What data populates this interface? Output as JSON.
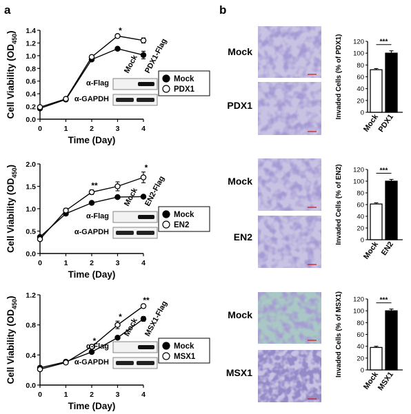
{
  "panel_letters": {
    "left": "a",
    "right": "b"
  },
  "chart_data": [
    {
      "type": "line",
      "panel": "a",
      "ylabel_main": "Cell Viability (OD",
      "ylabel_sub": "450",
      "ylabel_close": ")",
      "xlabel": "Time (Day)",
      "x": [
        0,
        1,
        2,
        3,
        4
      ],
      "ylim": [
        0.0,
        1.4
      ],
      "yticks": [
        "0.0",
        "0.2",
        "0.4",
        "0.6",
        "0.8",
        "1.0",
        "1.2",
        "1.4"
      ],
      "xticks": [
        "0",
        "1",
        "2",
        "3",
        "4"
      ],
      "series": [
        {
          "name": "Mock",
          "marker": "filled",
          "values": [
            0.17,
            0.31,
            0.94,
            1.11,
            1.01
          ],
          "err": [
            0.01,
            0.01,
            0.02,
            0.01,
            0.06
          ]
        },
        {
          "name": "PDX1",
          "marker": "open",
          "values": [
            0.19,
            0.32,
            0.98,
            1.31,
            1.24
          ],
          "err": [
            0.01,
            0.01,
            0.02,
            0.02,
            0.04
          ]
        }
      ],
      "annotations": [
        {
          "x": 3,
          "text": "*"
        }
      ],
      "legend": [
        "Mock",
        "PDX1"
      ],
      "blot": {
        "lanes": [
          "Mock",
          "PDX1-Flag"
        ],
        "rows": [
          "α-Flag",
          "α-GAPDH"
        ]
      }
    },
    {
      "type": "line",
      "panel": "a",
      "ylabel_main": "Cell Viability (OD",
      "ylabel_sub": "450",
      "ylabel_close": ")",
      "xlabel": "Time (Day)",
      "x": [
        0,
        1,
        2,
        3,
        4
      ],
      "ylim": [
        0.0,
        2.0
      ],
      "yticks": [
        "0.0",
        "0.5",
        "1.0",
        "1.5",
        "2.0"
      ],
      "xticks": [
        "0",
        "1",
        "2",
        "3",
        "4"
      ],
      "series": [
        {
          "name": "Mock",
          "marker": "filled",
          "values": [
            0.37,
            0.89,
            1.13,
            1.26,
            1.27
          ],
          "err": [
            0.02,
            0.03,
            0.02,
            0.02,
            0.02
          ]
        },
        {
          "name": "EN2",
          "marker": "open",
          "values": [
            0.32,
            0.96,
            1.37,
            1.5,
            1.7
          ],
          "err": [
            0.02,
            0.05,
            0.05,
            0.1,
            0.12
          ]
        }
      ],
      "annotations": [
        {
          "x": 2,
          "text": "**"
        },
        {
          "x": 4,
          "text": "*"
        }
      ],
      "legend": [
        "Mock",
        "EN2"
      ],
      "blot": {
        "lanes": [
          "Mock",
          "EN2-Flag"
        ],
        "rows": [
          "α-Flag",
          "α-GAPDH"
        ]
      }
    },
    {
      "type": "line",
      "panel": "a",
      "ylabel_main": "Cell Viability (OD",
      "ylabel_sub": "450",
      "ylabel_close": ")",
      "xlabel": "Time (Day)",
      "x": [
        0,
        1,
        2,
        3,
        4
      ],
      "ylim": [
        0.0,
        1.2
      ],
      "yticks": [
        "0.0",
        "0.4",
        "0.8",
        "1.2"
      ],
      "xticks": [
        "0",
        "1",
        "2",
        "3",
        "4"
      ],
      "series": [
        {
          "name": "Mock",
          "marker": "filled",
          "values": [
            0.23,
            0.31,
            0.44,
            0.63,
            0.88
          ],
          "err": [
            0.01,
            0.01,
            0.01,
            0.02,
            0.03
          ]
        },
        {
          "name": "MSX1",
          "marker": "open",
          "values": [
            0.21,
            0.3,
            0.51,
            0.8,
            1.05
          ],
          "err": [
            0.01,
            0.01,
            0.02,
            0.05,
            0.02
          ]
        }
      ],
      "annotations": [
        {
          "x": 2,
          "text": "*"
        },
        {
          "x": 3,
          "text": "*"
        },
        {
          "x": 4,
          "text": "**"
        }
      ],
      "legend": [
        "Mock",
        "MSX1"
      ],
      "blot": {
        "lanes": [
          "Mock",
          "MSX1-Flag"
        ],
        "rows": [
          "α-Flag",
          "α-GAPDH"
        ]
      }
    },
    {
      "type": "bar",
      "panel": "b",
      "ylabel": "Invaded Cells (% of PDX1)",
      "categories": [
        "Mock",
        "PDX1"
      ],
      "values": [
        72,
        100
      ],
      "err": [
        2,
        4
      ],
      "fills": [
        "open",
        "filled"
      ],
      "ylim": [
        0,
        120
      ],
      "yticks": [
        "0",
        "20",
        "40",
        "60",
        "80",
        "100",
        "120"
      ],
      "significance": "***",
      "images": [
        "Mock",
        "PDX1"
      ]
    },
    {
      "type": "bar",
      "panel": "b",
      "ylabel": "Invaded Cells (% of EN2)",
      "categories": [
        "Mock",
        "EN2"
      ],
      "values": [
        61,
        100
      ],
      "err": [
        2,
        3
      ],
      "fills": [
        "open",
        "filled"
      ],
      "ylim": [
        0,
        120
      ],
      "yticks": [
        "0",
        "20",
        "40",
        "60",
        "80",
        "100",
        "120"
      ],
      "significance": "***",
      "images": [
        "Mock",
        "EN2"
      ]
    },
    {
      "type": "bar",
      "panel": "b",
      "ylabel": "Invaded Cells (% of MSX1)",
      "categories": [
        "Mock",
        "MSX1"
      ],
      "values": [
        38,
        100
      ],
      "err": [
        2,
        3
      ],
      "fills": [
        "open",
        "filled"
      ],
      "ylim": [
        0,
        120
      ],
      "yticks": [
        "0",
        "20",
        "40",
        "60",
        "80",
        "100",
        "120"
      ],
      "significance": "***",
      "images": [
        "Mock",
        "MSX1"
      ]
    }
  ],
  "colors": {
    "ink": "#000000",
    "micrograph_purple": "#6f63b0",
    "micrograph_purple_bg": "#c9c3e3",
    "micrograph_teal_bg": "#a9c7c4",
    "scale_bar": "#d02020"
  }
}
